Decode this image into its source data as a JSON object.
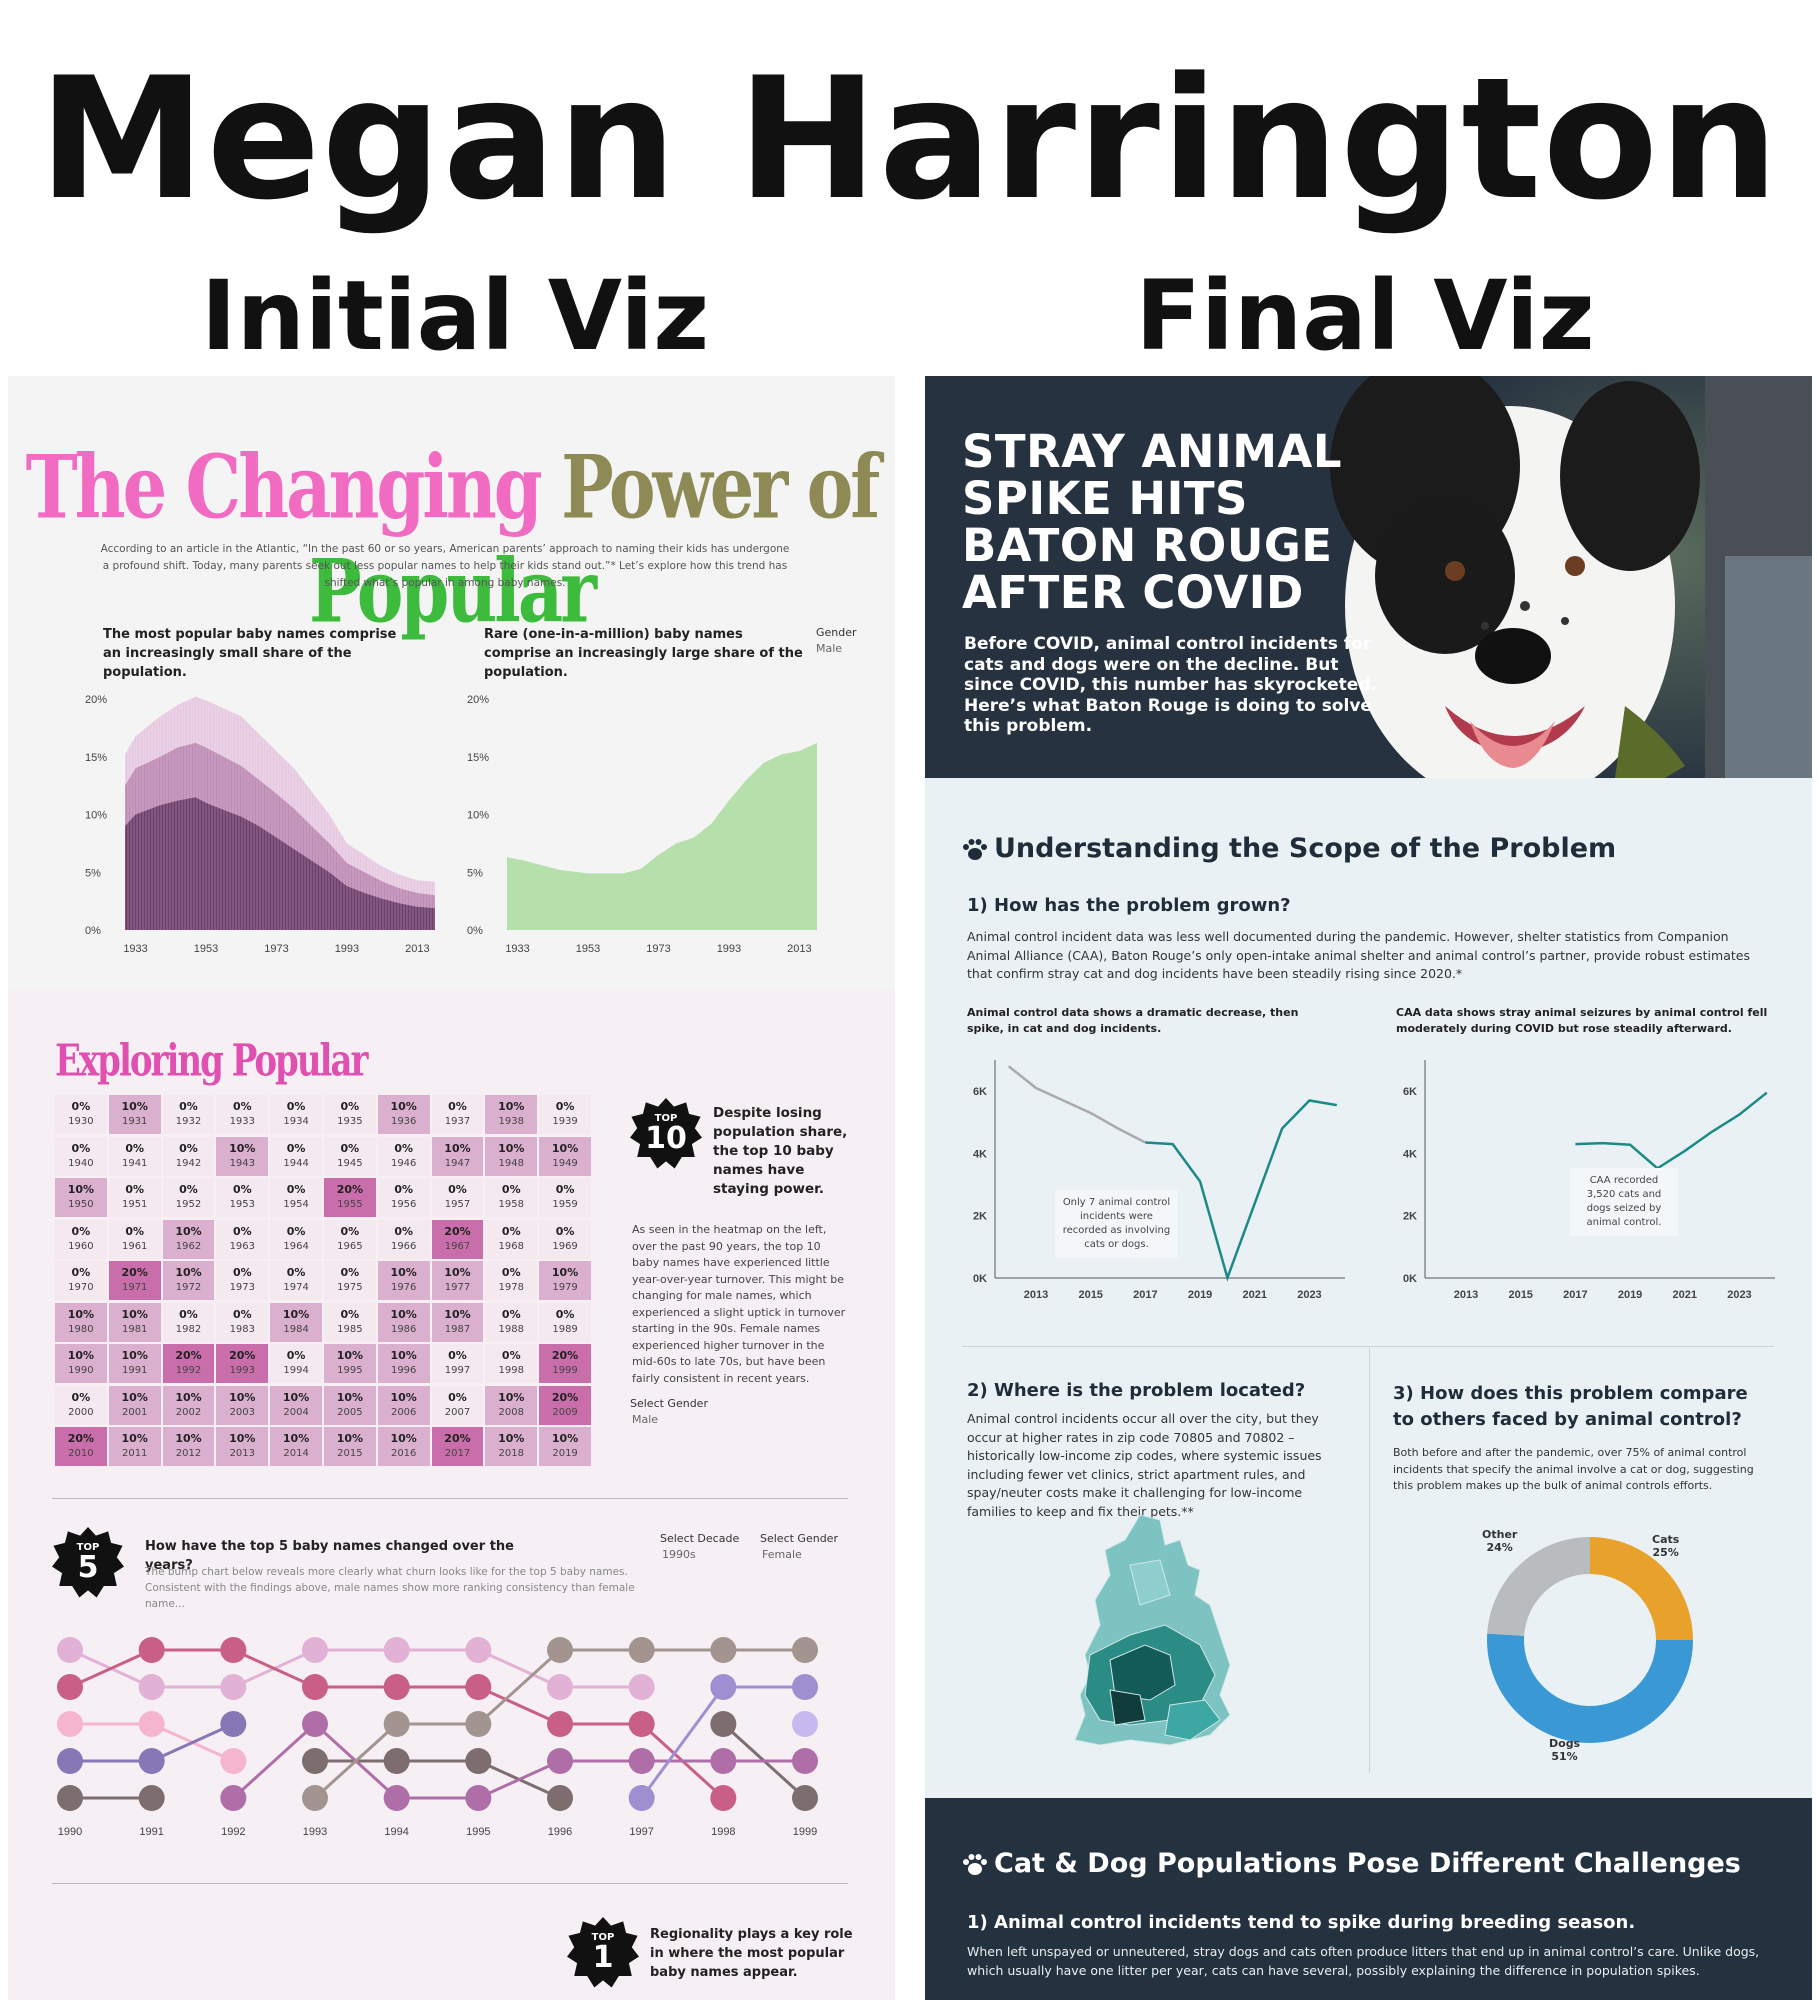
{
  "page": {
    "title": "Megan Harrington",
    "initial_label": "Initial Viz",
    "final_label": "Final Viz"
  },
  "initial": {
    "title_parts": [
      "The Changing",
      "Power",
      "of",
      "Popular"
    ],
    "intro": "According to an article in the Atlantic, “In the past 60 or so years, American parents’ approach to naming their kids has undergone a profound shift. Today, many parents seek out less popular names to help their kids stand out.”* Let’s explore how this trend has shifted what’s popular in among baby names.",
    "chart1_title": "The most popular baby names comprise an increasingly small share of the population.",
    "chart2_title": "Rare (one-in-a-million) baby names comprise an increasingly large share of the population.",
    "gender_label": "Gender",
    "gender_value": "Male",
    "exploring_title": "Exploring Popular",
    "top10_badge": {
      "top": "TOP",
      "num": "10"
    },
    "top10_heading": "Despite losing population share, the top 10 baby names have staying power.",
    "top10_text": "As seen in the heatmap on the left, over the past 90 years, the top 10 baby names have experienced little year-over-year turnover. This might be changing for male names, which experienced a slight uptick in turnover starting in the 90s. Female names experienced higher turnover in the mid-60s to late 70s, but have been fairly consistent in recent years.",
    "select_gender_label": "Select Gender",
    "select_gender_value": "Male",
    "heatmap": [
      [
        "0%",
        "10%",
        "0%",
        "0%",
        "0%",
        "0%",
        "10%",
        "0%",
        "10%",
        "0%"
      ],
      [
        "0%",
        "0%",
        "0%",
        "10%",
        "0%",
        "0%",
        "0%",
        "10%",
        "10%",
        "10%"
      ],
      [
        "10%",
        "0%",
        "0%",
        "0%",
        "0%",
        "20%",
        "0%",
        "0%",
        "0%",
        "0%"
      ],
      [
        "0%",
        "0%",
        "10%",
        "0%",
        "0%",
        "0%",
        "0%",
        "20%",
        "0%",
        "0%"
      ],
      [
        "0%",
        "20%",
        "10%",
        "0%",
        "0%",
        "0%",
        "10%",
        "10%",
        "0%",
        "10%"
      ],
      [
        "10%",
        "10%",
        "0%",
        "0%",
        "10%",
        "0%",
        "10%",
        "10%",
        "0%",
        "0%"
      ],
      [
        "10%",
        "10%",
        "20%",
        "20%",
        "0%",
        "10%",
        "10%",
        "0%",
        "0%",
        "20%"
      ],
      [
        "0%",
        "10%",
        "10%",
        "10%",
        "10%",
        "10%",
        "10%",
        "0%",
        "10%",
        "20%"
      ],
      [
        "20%",
        "10%",
        "10%",
        "10%",
        "10%",
        "10%",
        "10%",
        "20%",
        "10%",
        "10%"
      ]
    ],
    "heatmap_start_year": 1930,
    "top5_badge": {
      "top": "TOP",
      "num": "5"
    },
    "top5_heading": "How have the top 5 baby names changed over the years?",
    "top5_text": "The bump chart below reveals more clearly what churn looks like for the top 5 baby names. Consistent with the findings above, male names show more ranking consistency than female name...",
    "select_decade_label": "Select Decade",
    "select_decade_value": "1990s",
    "select_gender2_label": "Select Gender",
    "select_gender2_value": "Female",
    "top1_badge": {
      "top": "TOP",
      "num": "1"
    },
    "top1_heading": "Regionality plays a key role in where the most popular baby names appear."
  },
  "chart_data": [
    {
      "type": "area",
      "title": "The most popular baby names comprise an increasingly small share of the population.",
      "x": [
        1930,
        1933,
        1940,
        1945,
        1950,
        1953,
        1958,
        1963,
        1968,
        1973,
        1978,
        1983,
        1988,
        1993,
        1998,
        2003,
        2008,
        2013,
        2018
      ],
      "series": [
        {
          "values": [
            15.2,
            16.8,
            18.5,
            19.5,
            20.2,
            19.9,
            19.2,
            18.5,
            17.0,
            15.5,
            14.0,
            12.0,
            10.0,
            7.5,
            6.5,
            5.5,
            4.8,
            4.3,
            4.2
          ]
        },
        {
          "values": [
            12.5,
            14.0,
            15.0,
            15.8,
            16.2,
            15.8,
            15.0,
            14.2,
            13.0,
            11.8,
            10.5,
            9.0,
            7.5,
            5.8,
            5.0,
            4.2,
            3.6,
            3.2,
            3.0
          ]
        },
        {
          "values": [
            9.0,
            10.0,
            10.8,
            11.2,
            11.5,
            11.0,
            10.4,
            9.8,
            9.0,
            8.0,
            7.0,
            6.0,
            5.0,
            3.8,
            3.2,
            2.7,
            2.3,
            2.0,
            1.9
          ]
        }
      ],
      "ylim": [
        0,
        20
      ],
      "yticks": [
        "0%",
        "5%",
        "10%",
        "15%",
        "20%"
      ],
      "xticks": [
        "1933",
        "1953",
        "1973",
        "1993",
        "2013"
      ]
    },
    {
      "type": "area",
      "title": "Rare (one-in-a-million) baby names comprise an increasingly large share of the population.",
      "x": [
        1930,
        1935,
        1945,
        1953,
        1963,
        1968,
        1973,
        1978,
        1983,
        1988,
        1993,
        1998,
        2003,
        2008,
        2013,
        2018
      ],
      "values": [
        6.3,
        6.0,
        5.2,
        4.9,
        4.9,
        5.3,
        6.5,
        7.5,
        8.0,
        9.2,
        11.2,
        13.0,
        14.5,
        15.2,
        15.5,
        16.2
      ],
      "ylim": [
        0,
        20
      ],
      "yticks": [
        "0%",
        "5%",
        "10%",
        "15%",
        "20%"
      ],
      "xticks": [
        "1933",
        "1953",
        "1973",
        "1993",
        "2013"
      ]
    },
    {
      "type": "line",
      "title": "How have the top 5 baby names changed over the years?",
      "categories": [
        "1990",
        "1991",
        "1992",
        "1993",
        "1994",
        "1995",
        "1996",
        "1997",
        "1998",
        "1999"
      ],
      "series": [
        {
          "color": "#e2b2d6",
          "values": [
            1,
            2,
            2,
            1,
            1,
            1,
            2,
            2,
            null,
            null
          ]
        },
        {
          "color": "#c95f85",
          "values": [
            2,
            1,
            1,
            2,
            2,
            2,
            3,
            3,
            5,
            null
          ]
        },
        {
          "color": "#f6b5cf",
          "values": [
            3,
            3,
            4,
            null,
            null,
            null,
            null,
            null,
            null,
            null
          ]
        },
        {
          "color": "#8877b6",
          "values": [
            4,
            4,
            3,
            null,
            null,
            null,
            null,
            null,
            null,
            null
          ]
        },
        {
          "color": "#7e6d6f",
          "values": [
            5,
            5,
            null,
            4,
            4,
            4,
            5,
            null,
            3,
            5
          ]
        },
        {
          "color": "#b06ea9",
          "values": [
            null,
            null,
            5,
            3,
            5,
            5,
            4,
            4,
            4,
            4
          ]
        },
        {
          "color": "#a39490",
          "values": [
            null,
            null,
            null,
            5,
            3,
            3,
            1,
            1,
            1,
            1
          ]
        },
        {
          "color": "#9f8fd1",
          "values": [
            null,
            null,
            null,
            null,
            null,
            null,
            null,
            5,
            2,
            2
          ]
        },
        {
          "color": "#c8b8f0",
          "values": [
            null,
            null,
            null,
            null,
            null,
            null,
            null,
            null,
            null,
            3
          ]
        }
      ]
    },
    {
      "type": "line",
      "title": "Animal control data shows a dramatic decrease, then spike, in cat and dog incidents.",
      "x": [
        2012,
        2013,
        2014,
        2015,
        2016,
        2017,
        2018,
        2019,
        2020,
        2021,
        2022,
        2023,
        2024
      ],
      "values": [
        6800,
        6100,
        5700,
        5300,
        4800,
        4350,
        4300,
        3100,
        7,
        2400,
        4800,
        5700,
        5550
      ],
      "segments": {
        "gray_until": 2017,
        "teal_from": 2017
      },
      "ylim": [
        0,
        7000
      ],
      "yticks": [
        "0K",
        "2K",
        "4K",
        "6K"
      ],
      "xticks": [
        "2013",
        "2015",
        "2017",
        "2019",
        "2021",
        "2023"
      ],
      "annotation": "Only 7 animal control incidents were recorded as involving cats or dogs."
    },
    {
      "type": "line",
      "title": "CAA data shows stray animal seizures by animal control fell moderately during COVID but rose steadily afterward.",
      "x": [
        2017,
        2018,
        2019,
        2020,
        2021,
        2022,
        2023,
        2024
      ],
      "values": [
        4300,
        4330,
        4280,
        3520,
        4080,
        4700,
        5250,
        5950
      ],
      "ylim": [
        0,
        7000
      ],
      "yticks": [
        "0K",
        "2K",
        "4K",
        "6K"
      ],
      "xticks": [
        "2013",
        "2015",
        "2017",
        "2019",
        "2021",
        "2023"
      ],
      "annotation": "CAA recorded 3,520 cats and dogs seized by animal control."
    },
    {
      "type": "pie",
      "labels": [
        "Cats",
        "Dogs",
        "Other"
      ],
      "values": [
        25,
        51,
        24
      ],
      "colors": [
        "#e8a22b",
        "#3a98d5",
        "#b9bcbe"
      ]
    }
  ],
  "final": {
    "hero_title": "STRAY ANIMAL SPIKE HITS BATON ROUGE AFTER COVID",
    "hero_text": "Before COVID, animal control incidents for cats and dogs were on the decline. But since COVID, this number has skyrocketed. Here’s what Baton Rouge is doing to solve this problem.",
    "section1": "Understanding the Scope of the Problem",
    "q1": "1) How has the problem grown?",
    "q1_text": "Animal control incident data was less well documented during the pandemic. However, shelter statistics from Companion Animal Alliance (CAA), Baton Rouge’s only open-intake animal shelter and animal control’s partner, provide robust estimates that confirm stray cat and dog incidents have been steadily rising since 2020.*",
    "chart_a_title": "Animal control data shows a dramatic decrease, then spike, in cat and dog incidents.",
    "chart_b_title": "CAA data shows stray animal seizures by animal control fell moderately during COVID but rose steadily afterward.",
    "annot_a": "Only 7 animal control incidents were recorded as involving cats or dogs.",
    "annot_b": "CAA recorded 3,520 cats and dogs seized by animal control.",
    "q2": "2) Where is the problem located?",
    "q2_text": "Animal control incidents occur all over the city, but they occur at higher rates in zip code 70805 and 70802 – historically low-income zip codes, where systemic issues including fewer vet clinics, strict apartment rules, and spay/neuter costs make it challenging for low-income families to keep and fix their pets.**",
    "q3": "3) How does this problem compare to others faced by animal control?",
    "q3_text": "Both before and after the pandemic, over 75% of animal control incidents that specify the animal involve a cat or dog, suggesting this problem makes up the bulk of animal controls efforts.",
    "donut_labels": {
      "cats": "Cats",
      "cats_pct": "25%",
      "dogs": "Dogs",
      "dogs_pct": "51%",
      "other": "Other",
      "other_pct": "24%"
    },
    "section2": "Cat & Dog Populations Pose Different Challenges",
    "q4": "1) Animal control incidents tend to spike during breeding season.",
    "q4_text": "When left unspayed or unneutered, stray dogs and cats often produce litters that end up in animal control’s care. Unlike dogs, which usually have one litter per year, cats can have several, possibly explaining the difference in population spikes."
  }
}
